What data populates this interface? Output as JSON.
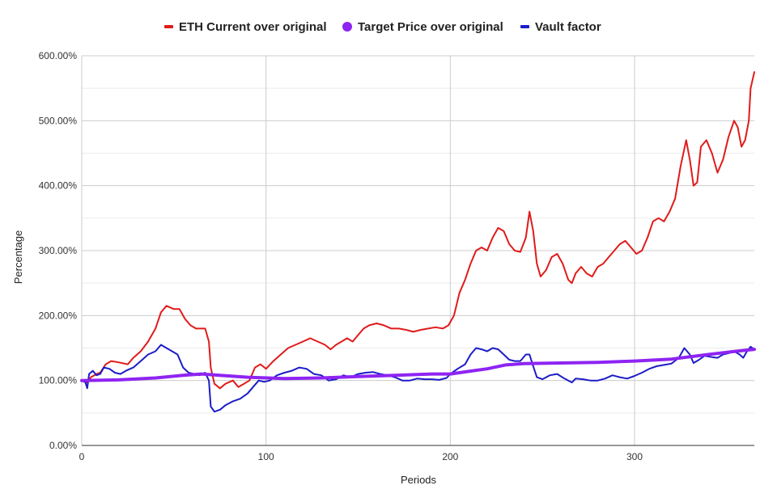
{
  "chart_data": {
    "type": "line",
    "xlabel": "Periods",
    "ylabel": "Percentage",
    "xlim": [
      0,
      365
    ],
    "ylim": [
      0,
      600
    ],
    "x_ticks": [
      0,
      100,
      200,
      300
    ],
    "y_ticks": [
      0,
      100,
      200,
      300,
      400,
      500,
      600
    ],
    "y_tick_labels": [
      "0.00%",
      "100.00%",
      "200.00%",
      "300.00%",
      "400.00%",
      "500.00%",
      "600.00%"
    ],
    "grid": true,
    "legend_position": "top",
    "series": [
      {
        "name": "ETH Current over original",
        "color": "#e01b1b",
        "marker": "line",
        "points": [
          [
            0,
            100
          ],
          [
            3,
            97
          ],
          [
            5,
            105
          ],
          [
            8,
            110
          ],
          [
            10,
            112
          ],
          [
            13,
            125
          ],
          [
            16,
            130
          ],
          [
            20,
            128
          ],
          [
            25,
            125
          ],
          [
            28,
            135
          ],
          [
            32,
            145
          ],
          [
            36,
            160
          ],
          [
            40,
            180
          ],
          [
            43,
            205
          ],
          [
            46,
            215
          ],
          [
            50,
            210
          ],
          [
            53,
            210
          ],
          [
            56,
            195
          ],
          [
            59,
            185
          ],
          [
            62,
            180
          ],
          [
            65,
            180
          ],
          [
            67,
            180
          ],
          [
            69,
            160
          ],
          [
            70,
            120
          ],
          [
            72,
            95
          ],
          [
            75,
            88
          ],
          [
            78,
            95
          ],
          [
            82,
            100
          ],
          [
            85,
            90
          ],
          [
            88,
            95
          ],
          [
            91,
            100
          ],
          [
            94,
            120
          ],
          [
            97,
            125
          ],
          [
            100,
            118
          ],
          [
            104,
            130
          ],
          [
            108,
            140
          ],
          [
            112,
            150
          ],
          [
            116,
            155
          ],
          [
            120,
            160
          ],
          [
            124,
            165
          ],
          [
            128,
            160
          ],
          [
            132,
            155
          ],
          [
            135,
            148
          ],
          [
            138,
            155
          ],
          [
            141,
            160
          ],
          [
            144,
            165
          ],
          [
            147,
            160
          ],
          [
            150,
            170
          ],
          [
            153,
            180
          ],
          [
            156,
            185
          ],
          [
            160,
            188
          ],
          [
            164,
            185
          ],
          [
            168,
            180
          ],
          [
            172,
            180
          ],
          [
            176,
            178
          ],
          [
            180,
            175
          ],
          [
            184,
            178
          ],
          [
            188,
            180
          ],
          [
            192,
            182
          ],
          [
            196,
            180
          ],
          [
            199,
            185
          ],
          [
            202,
            200
          ],
          [
            205,
            235
          ],
          [
            208,
            255
          ],
          [
            211,
            280
          ],
          [
            214,
            300
          ],
          [
            217,
            305
          ],
          [
            220,
            300
          ],
          [
            223,
            320
          ],
          [
            226,
            335
          ],
          [
            229,
            330
          ],
          [
            232,
            310
          ],
          [
            235,
            300
          ],
          [
            238,
            298
          ],
          [
            241,
            320
          ],
          [
            243,
            360
          ],
          [
            245,
            330
          ],
          [
            247,
            280
          ],
          [
            249,
            260
          ],
          [
            252,
            270
          ],
          [
            255,
            290
          ],
          [
            258,
            295
          ],
          [
            261,
            280
          ],
          [
            264,
            255
          ],
          [
            266,
            250
          ],
          [
            268,
            265
          ],
          [
            271,
            275
          ],
          [
            274,
            265
          ],
          [
            277,
            260
          ],
          [
            280,
            275
          ],
          [
            283,
            280
          ],
          [
            286,
            290
          ],
          [
            289,
            300
          ],
          [
            292,
            310
          ],
          [
            295,
            315
          ],
          [
            298,
            305
          ],
          [
            301,
            295
          ],
          [
            304,
            300
          ],
          [
            307,
            320
          ],
          [
            310,
            345
          ],
          [
            313,
            350
          ],
          [
            316,
            345
          ],
          [
            319,
            360
          ],
          [
            322,
            380
          ],
          [
            325,
            430
          ],
          [
            328,
            470
          ],
          [
            330,
            440
          ],
          [
            332,
            400
          ],
          [
            334,
            405
          ],
          [
            336,
            460
          ],
          [
            339,
            470
          ],
          [
            342,
            450
          ],
          [
            345,
            420
          ],
          [
            348,
            440
          ],
          [
            351,
            475
          ],
          [
            354,
            500
          ],
          [
            356,
            490
          ],
          [
            358,
            460
          ],
          [
            360,
            470
          ],
          [
            362,
            500
          ],
          [
            363,
            550
          ],
          [
            365,
            575
          ]
        ]
      },
      {
        "name": "Target Price over original",
        "color": "#8e24f2",
        "marker": "circle",
        "points": [
          [
            0,
            100
          ],
          [
            20,
            101
          ],
          [
            40,
            104
          ],
          [
            55,
            108
          ],
          [
            65,
            110
          ],
          [
            75,
            108
          ],
          [
            90,
            105
          ],
          [
            110,
            103
          ],
          [
            130,
            104
          ],
          [
            150,
            106
          ],
          [
            170,
            108
          ],
          [
            190,
            110
          ],
          [
            200,
            110
          ],
          [
            210,
            114
          ],
          [
            220,
            118
          ],
          [
            230,
            124
          ],
          [
            240,
            126
          ],
          [
            260,
            127
          ],
          [
            280,
            128
          ],
          [
            300,
            130
          ],
          [
            320,
            133
          ],
          [
            340,
            140
          ],
          [
            355,
            145
          ],
          [
            365,
            148
          ]
        ]
      },
      {
        "name": "Vault factor",
        "color": "#1c1cc7",
        "marker": "line",
        "points": [
          [
            0,
            100
          ],
          [
            2,
            97
          ],
          [
            3,
            88
          ],
          [
            4,
            110
          ],
          [
            6,
            115
          ],
          [
            8,
            108
          ],
          [
            10,
            110
          ],
          [
            12,
            120
          ],
          [
            15,
            118
          ],
          [
            18,
            112
          ],
          [
            21,
            110
          ],
          [
            24,
            115
          ],
          [
            28,
            120
          ],
          [
            32,
            130
          ],
          [
            36,
            140
          ],
          [
            40,
            145
          ],
          [
            43,
            155
          ],
          [
            46,
            150
          ],
          [
            49,
            145
          ],
          [
            52,
            140
          ],
          [
            55,
            120
          ],
          [
            58,
            112
          ],
          [
            61,
            110
          ],
          [
            64,
            108
          ],
          [
            67,
            112
          ],
          [
            69,
            100
          ],
          [
            70,
            60
          ],
          [
            72,
            52
          ],
          [
            75,
            55
          ],
          [
            78,
            62
          ],
          [
            82,
            68
          ],
          [
            86,
            72
          ],
          [
            90,
            80
          ],
          [
            93,
            90
          ],
          [
            96,
            100
          ],
          [
            99,
            98
          ],
          [
            102,
            100
          ],
          [
            106,
            108
          ],
          [
            110,
            112
          ],
          [
            114,
            115
          ],
          [
            118,
            120
          ],
          [
            122,
            118
          ],
          [
            126,
            110
          ],
          [
            130,
            108
          ],
          [
            134,
            100
          ],
          [
            138,
            102
          ],
          [
            142,
            108
          ],
          [
            146,
            105
          ],
          [
            150,
            110
          ],
          [
            154,
            112
          ],
          [
            158,
            113
          ],
          [
            162,
            110
          ],
          [
            166,
            108
          ],
          [
            170,
            105
          ],
          [
            174,
            100
          ],
          [
            178,
            100
          ],
          [
            182,
            103
          ],
          [
            186,
            102
          ],
          [
            190,
            102
          ],
          [
            194,
            101
          ],
          [
            198,
            104
          ],
          [
            200,
            110
          ],
          [
            204,
            118
          ],
          [
            208,
            125
          ],
          [
            211,
            140
          ],
          [
            214,
            150
          ],
          [
            217,
            148
          ],
          [
            220,
            145
          ],
          [
            223,
            150
          ],
          [
            226,
            148
          ],
          [
            229,
            140
          ],
          [
            232,
            132
          ],
          [
            235,
            130
          ],
          [
            238,
            130
          ],
          [
            241,
            140
          ],
          [
            243,
            140
          ],
          [
            245,
            122
          ],
          [
            247,
            105
          ],
          [
            250,
            102
          ],
          [
            254,
            108
          ],
          [
            258,
            110
          ],
          [
            262,
            103
          ],
          [
            264,
            100
          ],
          [
            266,
            97
          ],
          [
            268,
            103
          ],
          [
            272,
            102
          ],
          [
            276,
            100
          ],
          [
            280,
            100
          ],
          [
            284,
            103
          ],
          [
            288,
            108
          ],
          [
            292,
            105
          ],
          [
            296,
            103
          ],
          [
            300,
            107
          ],
          [
            304,
            112
          ],
          [
            308,
            118
          ],
          [
            312,
            122
          ],
          [
            316,
            124
          ],
          [
            320,
            126
          ],
          [
            324,
            135
          ],
          [
            327,
            150
          ],
          [
            330,
            140
          ],
          [
            332,
            127
          ],
          [
            335,
            132
          ],
          [
            338,
            138
          ],
          [
            342,
            136
          ],
          [
            345,
            135
          ],
          [
            348,
            140
          ],
          [
            351,
            142
          ],
          [
            354,
            145
          ],
          [
            357,
            140
          ],
          [
            359,
            135
          ],
          [
            361,
            145
          ],
          [
            363,
            152
          ],
          [
            365,
            148
          ]
        ]
      }
    ]
  }
}
